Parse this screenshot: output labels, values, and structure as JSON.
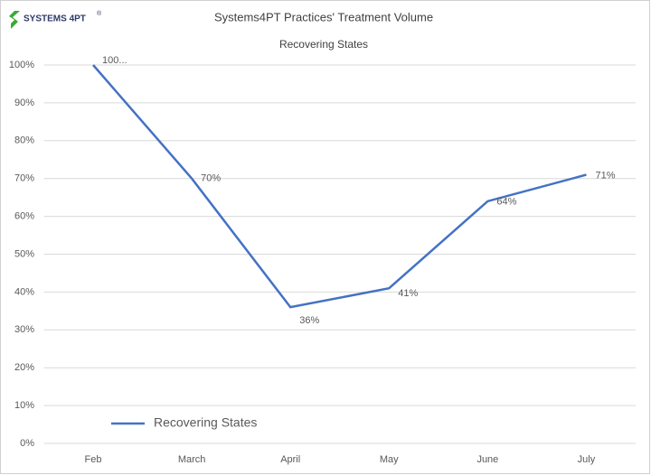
{
  "logo": "SYSTEMS 4PT",
  "logo_mark": "®",
  "chart_data": {
    "type": "line",
    "title": "Systems4PT Practices' Treatment Volume",
    "subtitle": "Recovering States",
    "categories": [
      "Feb",
      "March",
      "April",
      "May",
      "June",
      "July"
    ],
    "series": [
      {
        "name": "Recovering States",
        "color": "#4472c4",
        "values": [
          100,
          70,
          36,
          41,
          64,
          71
        ],
        "value_labels": [
          "100...",
          "70%",
          "36%",
          "41%",
          "64%",
          "71%"
        ]
      }
    ],
    "ylim": [
      0,
      100
    ],
    "yticks": [
      {
        "value": 0,
        "label": "0%"
      },
      {
        "value": 10,
        "label": "10%"
      },
      {
        "value": 20,
        "label": "20%"
      },
      {
        "value": 30,
        "label": "30%"
      },
      {
        "value": 40,
        "label": "40%"
      },
      {
        "value": 50,
        "label": "50%"
      },
      {
        "value": 60,
        "label": "60%"
      },
      {
        "value": 70,
        "label": "70%"
      },
      {
        "value": 80,
        "label": "80%"
      },
      {
        "value": 90,
        "label": "90%"
      },
      {
        "value": 100,
        "label": "100%"
      }
    ],
    "grid": true
  }
}
